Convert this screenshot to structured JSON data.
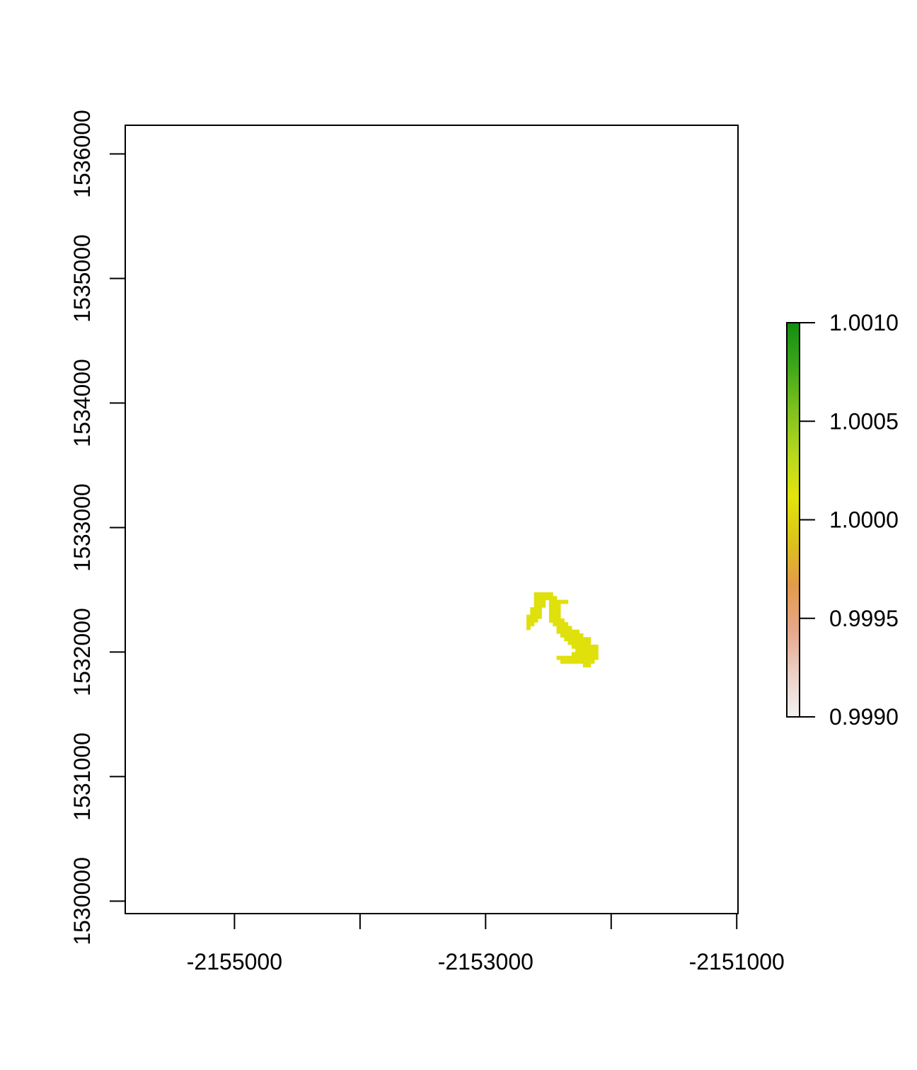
{
  "chart_data": {
    "type": "heatmap",
    "title": "",
    "xlabel": "",
    "ylabel": "",
    "xlim": [
      -2155870,
      -2150990
    ],
    "ylim": [
      1529900,
      1536230
    ],
    "x_ticks": [
      -2155000,
      -2154000,
      -2153000,
      -2152000,
      -2151000
    ],
    "x_tick_labels": [
      "-2155000",
      "",
      "-2153000",
      "",
      "-2151000"
    ],
    "y_ticks": [
      1530000,
      1531000,
      1532000,
      1533000,
      1534000,
      1535000,
      1536000
    ],
    "y_tick_labels": [
      "1530000",
      "1531000",
      "1532000",
      "1533000",
      "1534000",
      "1535000",
      "1536000"
    ],
    "cell_value": 1.0,
    "cell_color": "#e0e00c",
    "cell_size": 30,
    "cells": [
      [
        -2152600,
        1532465
      ],
      [
        -2152570,
        1532465
      ],
      [
        -2152540,
        1532465
      ],
      [
        -2152510,
        1532465
      ],
      [
        -2152480,
        1532465
      ],
      [
        -2152600,
        1532435
      ],
      [
        -2152570,
        1532435
      ],
      [
        -2152540,
        1532435
      ],
      [
        -2152510,
        1532435
      ],
      [
        -2152480,
        1532435
      ],
      [
        -2152450,
        1532435
      ],
      [
        -2152600,
        1532405
      ],
      [
        -2152570,
        1532405
      ],
      [
        -2152540,
        1532405
      ],
      [
        -2152480,
        1532405
      ],
      [
        -2152450,
        1532405
      ],
      [
        -2152420,
        1532405
      ],
      [
        -2152390,
        1532405
      ],
      [
        -2152360,
        1532405
      ],
      [
        -2152600,
        1532375
      ],
      [
        -2152570,
        1532375
      ],
      [
        -2152540,
        1532375
      ],
      [
        -2152480,
        1532375
      ],
      [
        -2152450,
        1532375
      ],
      [
        -2152420,
        1532375
      ],
      [
        -2152630,
        1532345
      ],
      [
        -2152600,
        1532345
      ],
      [
        -2152570,
        1532345
      ],
      [
        -2152480,
        1532345
      ],
      [
        -2152450,
        1532345
      ],
      [
        -2152420,
        1532345
      ],
      [
        -2152630,
        1532315
      ],
      [
        -2152600,
        1532315
      ],
      [
        -2152570,
        1532315
      ],
      [
        -2152480,
        1532315
      ],
      [
        -2152450,
        1532315
      ],
      [
        -2152420,
        1532315
      ],
      [
        -2152660,
        1532285
      ],
      [
        -2152630,
        1532285
      ],
      [
        -2152600,
        1532285
      ],
      [
        -2152570,
        1532285
      ],
      [
        -2152480,
        1532285
      ],
      [
        -2152450,
        1532285
      ],
      [
        -2152420,
        1532285
      ],
      [
        -2152660,
        1532255
      ],
      [
        -2152630,
        1532255
      ],
      [
        -2152600,
        1532255
      ],
      [
        -2152480,
        1532255
      ],
      [
        -2152450,
        1532255
      ],
      [
        -2152420,
        1532255
      ],
      [
        -2152390,
        1532255
      ],
      [
        -2152660,
        1532225
      ],
      [
        -2152630,
        1532225
      ],
      [
        -2152450,
        1532225
      ],
      [
        -2152420,
        1532225
      ],
      [
        -2152390,
        1532225
      ],
      [
        -2152360,
        1532225
      ],
      [
        -2152660,
        1532195
      ],
      [
        -2152420,
        1532195
      ],
      [
        -2152390,
        1532195
      ],
      [
        -2152360,
        1532195
      ],
      [
        -2152330,
        1532195
      ],
      [
        -2152420,
        1532165
      ],
      [
        -2152390,
        1532165
      ],
      [
        -2152360,
        1532165
      ],
      [
        -2152330,
        1532165
      ],
      [
        -2152300,
        1532165
      ],
      [
        -2152270,
        1532165
      ],
      [
        -2152390,
        1532135
      ],
      [
        -2152360,
        1532135
      ],
      [
        -2152330,
        1532135
      ],
      [
        -2152300,
        1532135
      ],
      [
        -2152270,
        1532135
      ],
      [
        -2152240,
        1532135
      ],
      [
        -2152360,
        1532105
      ],
      [
        -2152330,
        1532105
      ],
      [
        -2152300,
        1532105
      ],
      [
        -2152270,
        1532105
      ],
      [
        -2152240,
        1532105
      ],
      [
        -2152210,
        1532105
      ],
      [
        -2152180,
        1532105
      ],
      [
        -2152330,
        1532075
      ],
      [
        -2152300,
        1532075
      ],
      [
        -2152270,
        1532075
      ],
      [
        -2152240,
        1532075
      ],
      [
        -2152210,
        1532075
      ],
      [
        -2152180,
        1532075
      ],
      [
        -2152300,
        1532045
      ],
      [
        -2152270,
        1532045
      ],
      [
        -2152240,
        1532045
      ],
      [
        -2152210,
        1532045
      ],
      [
        -2152180,
        1532045
      ],
      [
        -2152150,
        1532045
      ],
      [
        -2152120,
        1532045
      ],
      [
        -2152270,
        1532015
      ],
      [
        -2152240,
        1532015
      ],
      [
        -2152210,
        1532015
      ],
      [
        -2152180,
        1532015
      ],
      [
        -2152150,
        1532015
      ],
      [
        -2152120,
        1532015
      ],
      [
        -2152300,
        1531985
      ],
      [
        -2152270,
        1531985
      ],
      [
        -2152240,
        1531985
      ],
      [
        -2152210,
        1531985
      ],
      [
        -2152180,
        1531985
      ],
      [
        -2152150,
        1531985
      ],
      [
        -2152120,
        1531985
      ],
      [
        -2152420,
        1531955
      ],
      [
        -2152390,
        1531955
      ],
      [
        -2152360,
        1531955
      ],
      [
        -2152330,
        1531955
      ],
      [
        -2152300,
        1531955
      ],
      [
        -2152270,
        1531955
      ],
      [
        -2152240,
        1531955
      ],
      [
        -2152210,
        1531955
      ],
      [
        -2152180,
        1531955
      ],
      [
        -2152150,
        1531955
      ],
      [
        -2152120,
        1531955
      ],
      [
        -2152390,
        1531925
      ],
      [
        -2152360,
        1531925
      ],
      [
        -2152330,
        1531925
      ],
      [
        -2152300,
        1531925
      ],
      [
        -2152270,
        1531925
      ],
      [
        -2152240,
        1531925
      ],
      [
        -2152210,
        1531925
      ],
      [
        -2152180,
        1531925
      ],
      [
        -2152150,
        1531925
      ],
      [
        -2152210,
        1531895
      ],
      [
        -2152180,
        1531895
      ]
    ],
    "legend": {
      "placement": "right",
      "range": [
        0.999,
        1.001
      ],
      "ticks": [
        0.999,
        0.9995,
        1.0,
        1.0005,
        1.001
      ],
      "tick_labels": [
        "0.9990",
        "0.9995",
        "1.0000",
        "1.0005",
        "1.0010"
      ],
      "color_stops": [
        "#f2f2f2",
        "#eccfc5",
        "#e6a788",
        "#e29a4a",
        "#dcc21a",
        "#e3e40c",
        "#b6d71f",
        "#7fc11e",
        "#3ea71a",
        "#138d13"
      ]
    }
  }
}
